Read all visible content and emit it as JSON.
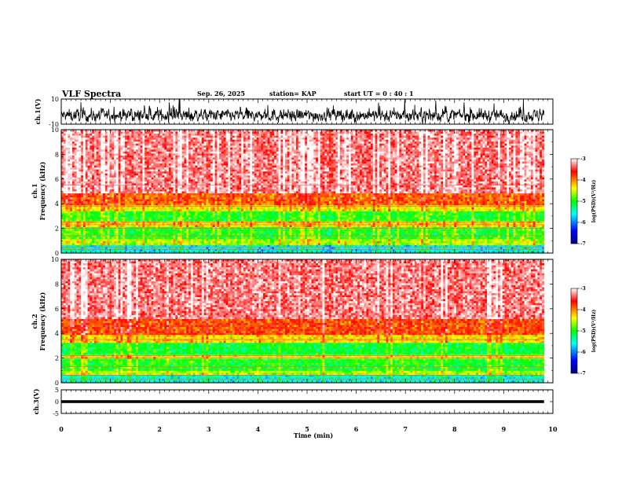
{
  "header": {
    "title": "VLF Spectra",
    "date": "Sep. 26, 2025",
    "station": "station= KAP",
    "start_time": "start  UT  =   0  : 40 : 1"
  },
  "chart_data": {
    "type": "heatmap",
    "title": "VLF Spectra",
    "x": {
      "label": "Time  (min)",
      "range": [
        0,
        10
      ],
      "ticks": [
        0,
        1,
        2,
        3,
        4,
        5,
        6,
        7,
        8,
        9,
        10
      ],
      "data_end": 9.82
    },
    "panels": [
      {
        "name": "ch.1(V)",
        "kind": "waveform",
        "ylabel": "ch.1(V)",
        "ylim": [
          -10,
          10
        ],
        "yticks": [
          10,
          -10
        ],
        "baseline": -3,
        "spread": 4.5
      },
      {
        "name": "ch.1 spectrogram",
        "kind": "spectrogram",
        "ylabel_top": "ch.1",
        "ylabel": "Frequency  (kHz)",
        "ylim": [
          0,
          10
        ],
        "yticks": [
          0,
          2,
          4,
          6,
          8,
          10
        ],
        "bands_khz": [
          {
            "from": 0,
            "to": 0.7,
            "level": -5.6
          },
          {
            "from": 0.7,
            "to": 1.2,
            "level": -4.6
          },
          {
            "from": 1.2,
            "to": 2.1,
            "level": -5.0
          },
          {
            "from": 2.1,
            "to": 2.6,
            "level": -4.3
          },
          {
            "from": 2.6,
            "to": 3.4,
            "level": -5.0
          },
          {
            "from": 3.4,
            "to": 3.9,
            "level": -4.4
          },
          {
            "from": 3.9,
            "to": 4.9,
            "level": -3.9
          },
          {
            "from": 4.9,
            "to": 10,
            "level": -3.3
          }
        ],
        "lines_khz": [
          0.3,
          0.5,
          1.4,
          2.0,
          2.3,
          2.5,
          3.8,
          5.5
        ]
      },
      {
        "name": "ch.2 spectrogram",
        "kind": "spectrogram",
        "ylabel_top": "ch.2",
        "ylabel": "Frequency  (kHz)",
        "ylim": [
          0,
          10
        ],
        "yticks": [
          0,
          2,
          4,
          6,
          8,
          10
        ],
        "bands_khz": [
          {
            "from": 0,
            "to": 0.6,
            "level": -5.5
          },
          {
            "from": 0.6,
            "to": 1.0,
            "level": -4.6
          },
          {
            "from": 1.0,
            "to": 1.9,
            "level": -5.0
          },
          {
            "from": 1.9,
            "to": 2.3,
            "level": -4.4
          },
          {
            "from": 2.3,
            "to": 3.2,
            "level": -5.1
          },
          {
            "from": 3.2,
            "to": 3.8,
            "level": -4.3
          },
          {
            "from": 3.8,
            "to": 5.2,
            "level": -3.8
          },
          {
            "from": 5.2,
            "to": 10,
            "level": -3.3
          }
        ],
        "lines_khz": [
          0.3,
          0.6,
          1.3,
          2.0,
          2.2,
          3.5
        ]
      },
      {
        "name": "ch.3(V)",
        "kind": "waveform",
        "ylabel": "ch.3(V)",
        "ylim": [
          -5,
          5
        ],
        "yticks": [
          5,
          0,
          -5
        ],
        "baseline": 0,
        "spread": 0.6
      }
    ],
    "colorbar": {
      "label": "log(PSD)(V²/Hz)",
      "range": [
        -7,
        -3
      ],
      "ticks": [
        -3,
        -4,
        -5,
        -6,
        -7
      ],
      "colors": [
        "#000080",
        "#0000ff",
        "#00ffff",
        "#00ff00",
        "#ffff00",
        "#ff0000",
        "#ffffff"
      ]
    }
  }
}
